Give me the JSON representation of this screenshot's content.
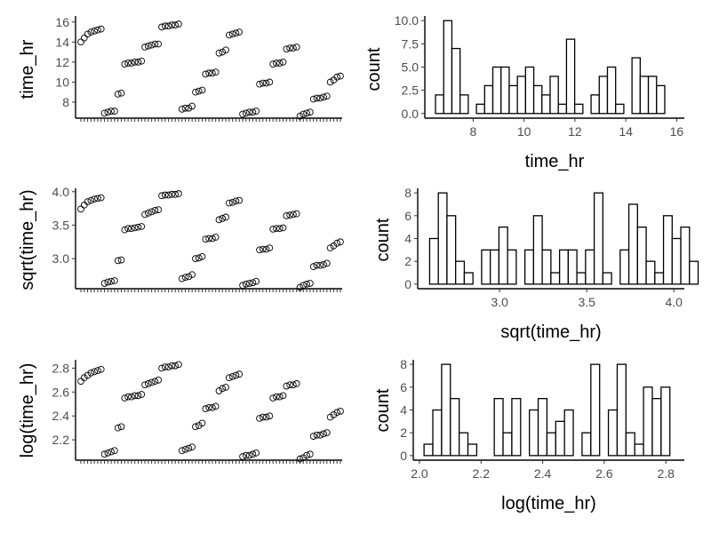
{
  "figure": {
    "background": "#ffffff",
    "line_color": "#000000",
    "text_color": "#4d4d4d"
  },
  "chart_data": [
    {
      "id": "scatter_raw",
      "type": "scatter",
      "xlabel": "",
      "ylabel": "time_hr",
      "x_tick_labels": "none (dense unlabeled ticks, one per observation)",
      "ylim": [
        6.4,
        16.6
      ],
      "yticks": [
        8,
        10,
        12,
        14,
        16
      ],
      "ytick_labels": [
        "8",
        "10",
        "12",
        "14",
        "16"
      ],
      "y": [
        14.0,
        14.4,
        14.8,
        15.0,
        15.1,
        15.2,
        15.3,
        6.9,
        7.0,
        7.1,
        7.1,
        8.8,
        8.9,
        11.8,
        11.9,
        11.9,
        12.0,
        12.0,
        12.1,
        13.5,
        13.6,
        13.7,
        13.8,
        13.8,
        15.5,
        15.6,
        15.6,
        15.7,
        15.7,
        15.8,
        7.3,
        7.4,
        7.4,
        7.6,
        9.0,
        9.1,
        9.2,
        10.8,
        10.9,
        10.9,
        11.0,
        12.9,
        13.0,
        13.2,
        14.7,
        14.8,
        14.9,
        15.0,
        6.8,
        6.9,
        7.0,
        7.0,
        7.1,
        9.8,
        9.9,
        9.9,
        10.0,
        11.8,
        11.9,
        11.9,
        12.0,
        13.3,
        13.4,
        13.4,
        13.5,
        6.6,
        6.8,
        6.9,
        7.0,
        8.3,
        8.4,
        8.4,
        8.5,
        8.6,
        10.0,
        10.2,
        10.5,
        10.6
      ]
    },
    {
      "id": "hist_raw",
      "type": "bar",
      "xlabel": "time_hr",
      "ylabel": "count",
      "bin_start": 6.52,
      "binwidth": 0.3218,
      "counts": [
        2,
        10,
        7,
        2,
        0,
        1,
        3,
        5,
        5,
        3,
        4,
        5,
        3,
        2,
        4,
        1,
        8,
        1,
        0,
        2,
        4,
        5,
        1,
        0,
        6,
        4,
        4,
        3
      ],
      "xlim": [
        6.1,
        16.3
      ],
      "xticks": [
        8,
        10,
        12,
        14,
        16
      ],
      "xtick_labels": [
        "8",
        "10",
        "12",
        "14",
        "16"
      ],
      "ylim": [
        -0.5,
        10.5
      ],
      "yticks": [
        0,
        2.5,
        5,
        7.5,
        10
      ],
      "ytick_labels": [
        "0.0",
        "2.5",
        "5.0",
        "7.5",
        "10.0"
      ]
    },
    {
      "id": "scatter_sqrt",
      "type": "scatter",
      "xlabel": "",
      "ylabel": "sqrt(time_hr)",
      "x_tick_labels": "none (dense unlabeled ticks, one per observation)",
      "ylim": [
        2.55,
        4.05
      ],
      "yticks": [
        3.0,
        3.5,
        4.0
      ],
      "ytick_labels": [
        "3.0",
        "3.5",
        "4.0"
      ],
      "y": [
        3.74,
        3.8,
        3.85,
        3.87,
        3.89,
        3.9,
        3.91,
        2.63,
        2.65,
        2.66,
        2.67,
        2.97,
        2.98,
        3.43,
        3.45,
        3.45,
        3.46,
        3.47,
        3.48,
        3.66,
        3.68,
        3.7,
        3.72,
        3.73,
        3.94,
        3.95,
        3.95,
        3.96,
        3.96,
        3.97,
        2.7,
        2.72,
        2.73,
        2.76,
        3.0,
        3.01,
        3.03,
        3.29,
        3.3,
        3.3,
        3.32,
        3.58,
        3.6,
        3.62,
        3.83,
        3.84,
        3.86,
        3.87,
        2.6,
        2.62,
        2.63,
        2.64,
        2.66,
        3.13,
        3.14,
        3.14,
        3.16,
        3.44,
        3.45,
        3.45,
        3.46,
        3.64,
        3.65,
        3.66,
        3.67,
        2.57,
        2.6,
        2.62,
        2.63,
        2.88,
        2.9,
        2.9,
        2.91,
        2.93,
        3.16,
        3.19,
        3.23,
        3.25
      ]
    },
    {
      "id": "hist_sqrt",
      "type": "bar",
      "xlabel": "sqrt(time_hr)",
      "ylabel": "count",
      "bin_start": 2.5985,
      "binwidth": 0.0497,
      "counts": [
        4,
        8,
        6,
        2,
        1,
        0,
        3,
        3,
        5,
        3,
        0,
        3,
        6,
        3,
        1,
        3,
        3,
        1,
        3,
        8,
        1,
        0,
        3,
        7,
        5,
        2,
        1,
        6,
        4,
        5,
        2
      ],
      "xlim": [
        2.53,
        4.06
      ],
      "xticks": [
        3.0,
        3.5,
        4.0
      ],
      "xtick_labels": [
        "3.0",
        "3.5",
        "4.0"
      ],
      "ylim": [
        -0.4,
        8.4
      ],
      "yticks": [
        0,
        2,
        4,
        6,
        8
      ],
      "ytick_labels": [
        "0",
        "2",
        "4",
        "6",
        "8"
      ]
    },
    {
      "id": "scatter_log",
      "type": "scatter",
      "xlabel": "",
      "ylabel": "log(time_hr)",
      "x_tick_labels": "none (dense unlabeled ticks, one per observation)",
      "ylim": [
        2.03,
        2.87
      ],
      "yticks": [
        2.2,
        2.4,
        2.6,
        2.8
      ],
      "ytick_labels": [
        "2.2",
        "2.4",
        "2.6",
        "2.8"
      ],
      "y": [
        2.69,
        2.72,
        2.74,
        2.76,
        2.77,
        2.78,
        2.79,
        2.08,
        2.09,
        2.1,
        2.11,
        2.3,
        2.31,
        2.55,
        2.56,
        2.56,
        2.57,
        2.57,
        2.58,
        2.66,
        2.67,
        2.68,
        2.69,
        2.7,
        2.8,
        2.81,
        2.81,
        2.82,
        2.82,
        2.83,
        2.11,
        2.12,
        2.13,
        2.14,
        2.31,
        2.32,
        2.34,
        2.46,
        2.47,
        2.47,
        2.48,
        2.61,
        2.63,
        2.64,
        2.72,
        2.73,
        2.74,
        2.75,
        2.06,
        2.07,
        2.07,
        2.08,
        2.09,
        2.38,
        2.39,
        2.39,
        2.4,
        2.55,
        2.56,
        2.56,
        2.57,
        2.65,
        2.66,
        2.66,
        2.67,
        2.04,
        2.05,
        2.07,
        2.08,
        2.23,
        2.24,
        2.24,
        2.25,
        2.26,
        2.39,
        2.41,
        2.43,
        2.44
      ]
    },
    {
      "id": "hist_log",
      "type": "bar",
      "xlabel": "log(time_hr)",
      "ylabel": "count",
      "bin_start": 2.015,
      "binwidth": 0.0285,
      "counts": [
        1,
        4,
        8,
        5,
        2,
        1,
        0,
        0,
        5,
        2,
        5,
        0,
        4,
        5,
        2,
        3,
        4,
        0,
        2,
        8,
        0,
        4,
        8,
        2,
        1,
        6,
        5,
        6
      ],
      "xlim": [
        1.98,
        2.86
      ],
      "xticks": [
        2.0,
        2.2,
        2.4,
        2.6,
        2.8
      ],
      "xtick_labels": [
        "2.0",
        "2.2",
        "2.4",
        "2.6",
        "2.8"
      ],
      "ylim": [
        -0.4,
        8.4
      ],
      "yticks": [
        0,
        2,
        4,
        6,
        8
      ],
      "ytick_labels": [
        "0",
        "2",
        "4",
        "6",
        "8"
      ]
    }
  ]
}
